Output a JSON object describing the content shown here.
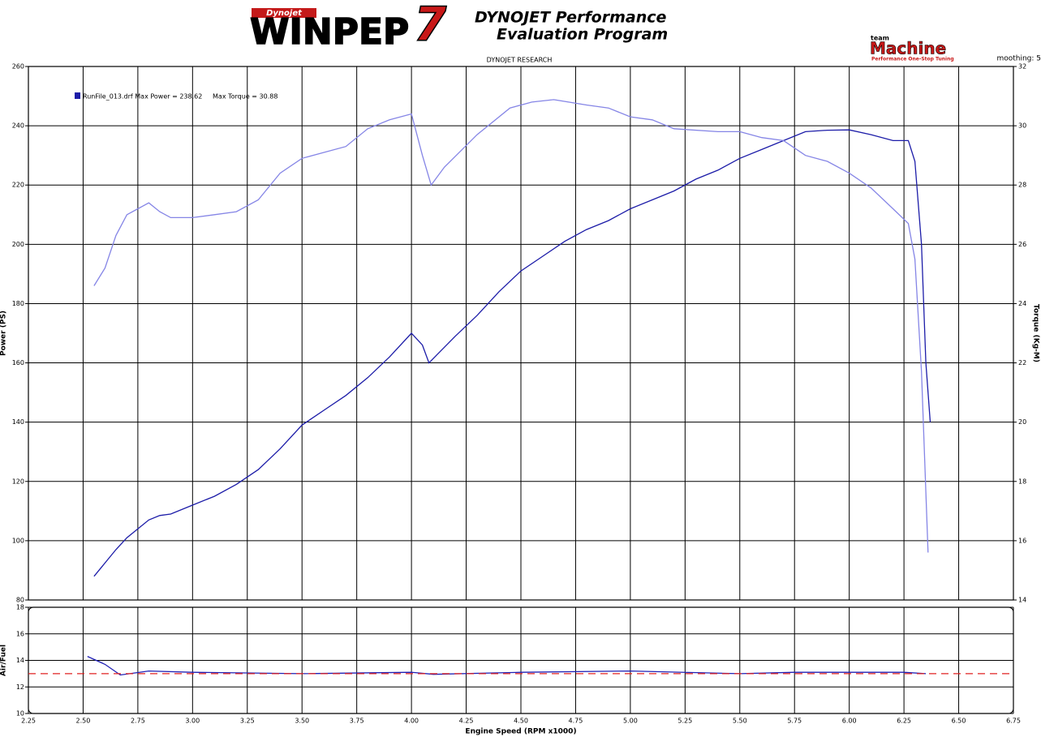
{
  "header": {
    "brand_small": "Dynojet",
    "brand": "WINPEP",
    "brand_number": "7",
    "tagline_1": "DYNOJET Performance",
    "tagline_2": "Evaluation Program",
    "sponsor_small": "team",
    "sponsor": "Machine",
    "sponsor_tag": "Performance One-Stop Tuning",
    "subtitle": "DYNOJET RESEARCH",
    "smoothing": "moothing: 5"
  },
  "chart_data": [
    {
      "type": "line",
      "legend": "RunFile_013.drf Max Power = 238.62     Max Torque = 30.88",
      "ylabel": "Power (PS)",
      "y2label": "Torque (Kg-M)",
      "xlim": [
        2.25,
        6.75
      ],
      "ylim": [
        80,
        260
      ],
      "yticks": [
        80,
        100,
        120,
        140,
        160,
        180,
        200,
        220,
        240,
        260
      ],
      "y2lim": [
        14,
        32
      ],
      "y2ticks": [
        14,
        16,
        18,
        20,
        22,
        24,
        26,
        28,
        30,
        32
      ],
      "grid": true,
      "series": [
        {
          "name": "Power",
          "color": "#1c1ca8",
          "axis": "y",
          "x": [
            2.55,
            2.65,
            2.7,
            2.75,
            2.8,
            2.85,
            2.9,
            3.0,
            3.1,
            3.2,
            3.3,
            3.4,
            3.5,
            3.6,
            3.7,
            3.8,
            3.9,
            4.0,
            4.05,
            4.08,
            4.12,
            4.2,
            4.3,
            4.4,
            4.5,
            4.6,
            4.7,
            4.8,
            4.9,
            5.0,
            5.1,
            5.2,
            5.3,
            5.4,
            5.5,
            5.6,
            5.7,
            5.8,
            5.9,
            6.0,
            6.1,
            6.2,
            6.27,
            6.3,
            6.33,
            6.35,
            6.37
          ],
          "values": [
            88,
            97,
            101,
            104,
            107,
            108.5,
            109,
            112,
            115,
            119,
            124,
            131,
            139,
            144,
            149,
            155,
            162,
            170,
            166,
            160,
            163,
            169,
            176,
            184,
            191,
            196,
            201,
            205,
            208,
            212,
            215,
            218,
            222,
            225,
            229,
            232,
            235,
            238,
            238.5,
            238.6,
            237,
            235,
            235,
            228,
            200,
            160,
            140
          ]
        },
        {
          "name": "Torque",
          "color": "#8585e6",
          "axis": "y2",
          "x": [
            2.55,
            2.6,
            2.65,
            2.7,
            2.75,
            2.8,
            2.85,
            2.9,
            3.0,
            3.1,
            3.2,
            3.3,
            3.4,
            3.5,
            3.6,
            3.7,
            3.8,
            3.9,
            4.0,
            4.05,
            4.09,
            4.15,
            4.3,
            4.45,
            4.55,
            4.65,
            4.8,
            4.9,
            5.0,
            5.1,
            5.2,
            5.4,
            5.5,
            5.6,
            5.7,
            5.8,
            5.9,
            6.0,
            6.1,
            6.2,
            6.27,
            6.3,
            6.33,
            6.36
          ],
          "values": [
            24.6,
            25.2,
            26.3,
            27.0,
            27.2,
            27.4,
            27.1,
            26.9,
            26.9,
            27.0,
            27.1,
            27.5,
            28.4,
            28.9,
            29.1,
            29.3,
            29.9,
            30.2,
            30.4,
            29.0,
            28.0,
            28.6,
            29.7,
            30.6,
            30.8,
            30.88,
            30.7,
            30.6,
            30.3,
            30.2,
            29.9,
            29.8,
            29.8,
            29.6,
            29.5,
            29.0,
            28.8,
            28.4,
            27.9,
            27.2,
            26.7,
            25.5,
            21.7,
            15.6
          ]
        }
      ]
    },
    {
      "type": "line",
      "ylabel": "Air/Fuel",
      "xlabel": "Engine Speed (RPM x1000)",
      "xlim": [
        2.25,
        6.75
      ],
      "xticks": [
        {
          "value": 2.25,
          "label": "2.25"
        },
        {
          "value": 2.5,
          "label": "2.50"
        },
        {
          "value": 2.75,
          "label": "2.75"
        },
        {
          "value": 3,
          "label": "3.00"
        },
        {
          "value": 3.25,
          "label": "3.25"
        },
        {
          "value": 3.5,
          "label": "3.50"
        },
        {
          "value": 3.75,
          "label": "3.75"
        },
        {
          "value": 4,
          "label": "4.00"
        },
        {
          "value": 4.25,
          "label": "4.25"
        },
        {
          "value": 4.5,
          "label": "4.50"
        },
        {
          "value": 4.75,
          "label": "4.75"
        },
        {
          "value": 5,
          "label": "5.00"
        },
        {
          "value": 5.25,
          "label": "5.25"
        },
        {
          "value": 5.5,
          "label": "5.50"
        },
        {
          "value": 5.75,
          "label": "5.75"
        },
        {
          "value": 6,
          "label": "6.00"
        },
        {
          "value": 6.25,
          "label": "6.25"
        },
        {
          "value": 6.5,
          "label": "6.50"
        },
        {
          "value": 6.75,
          "label": "6.75"
        }
      ],
      "ylim": [
        10,
        18
      ],
      "yticks": [
        10,
        12,
        14,
        16,
        18
      ],
      "grid": true,
      "series": [
        {
          "name": "Air/Fuel",
          "color": "#2020b4",
          "x": [
            2.52,
            2.6,
            2.67,
            2.8,
            3.0,
            3.5,
            4.0,
            4.1,
            4.5,
            5.0,
            5.5,
            5.75,
            6.25,
            6.35
          ],
          "values": [
            14.3,
            13.7,
            12.9,
            13.2,
            13.1,
            13.0,
            13.1,
            12.95,
            13.1,
            13.2,
            13.0,
            13.1,
            13.1,
            13.0
          ]
        },
        {
          "name": "Target",
          "color": "#e02020",
          "dashed": true,
          "x": [
            2.25,
            6.75
          ],
          "values": [
            13,
            13
          ]
        }
      ]
    }
  ]
}
